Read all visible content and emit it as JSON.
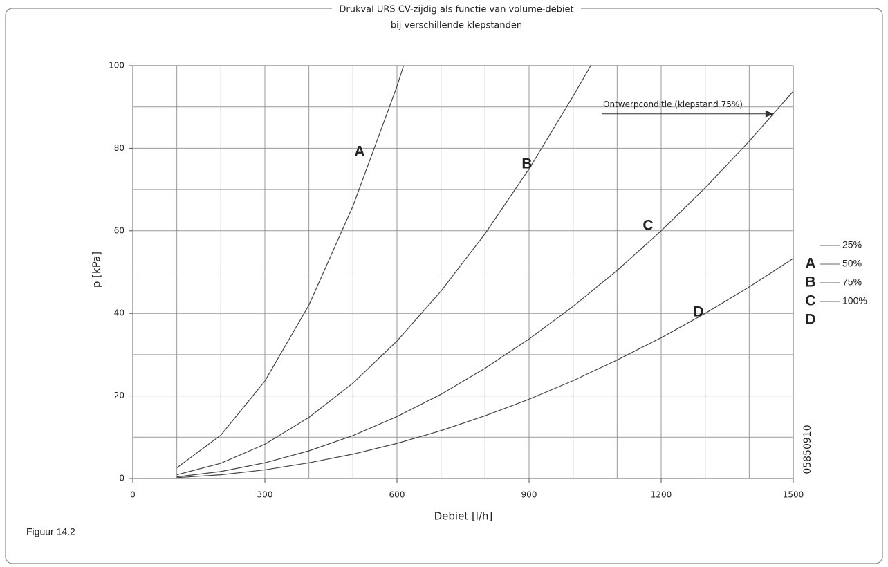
{
  "chart_data": {
    "type": "line",
    "title": [
      "Drukval URS CV-zijdig als functie van volume-debiet",
      "bij verschillende klepstanden"
    ],
    "x_label": "Debiet   [l/h]",
    "y_label": "p   [kPa]",
    "xlim": [
      0,
      1500
    ],
    "ylim": [
      0,
      100
    ],
    "xticks": [
      0,
      300,
      600,
      900,
      1200,
      1500
    ],
    "yticks": [
      0,
      20,
      40,
      60,
      80,
      100
    ],
    "xgrid": [
      100,
      200,
      300,
      400,
      500,
      600,
      700,
      800,
      900,
      1000,
      1100,
      1200,
      1300,
      1400
    ],
    "ygrid": [
      10,
      20,
      30,
      40,
      50,
      60,
      70,
      80,
      90
    ],
    "grid": true,
    "series": [
      {
        "name": "A",
        "color": "#444",
        "x": [
          100,
          200,
          300,
          400,
          500,
          600,
          615
        ],
        "values": [
          2.6,
          10.5,
          23.6,
          42,
          66,
          95,
          100
        ]
      },
      {
        "name": "B",
        "color": "#444",
        "x": [
          100,
          200,
          300,
          400,
          500,
          600,
          700,
          800,
          900,
          1000,
          1040
        ],
        "values": [
          0.9,
          3.7,
          8.3,
          14.8,
          23.1,
          33.3,
          45.4,
          59.3,
          75,
          92.6,
          100
        ]
      },
      {
        "name": "C",
        "color": "#444",
        "x": [
          100,
          200,
          300,
          400,
          500,
          600,
          700,
          800,
          900,
          1000,
          1100,
          1200,
          1300,
          1400,
          1500
        ],
        "values": [
          0.4,
          1.7,
          3.8,
          6.7,
          10.4,
          15,
          20.4,
          26.7,
          33.8,
          41.7,
          50.4,
          60,
          70.4,
          81.7,
          93.8
        ]
      },
      {
        "name": "D",
        "color": "#444",
        "x": [
          100,
          200,
          300,
          400,
          500,
          600,
          700,
          800,
          900,
          1000,
          1100,
          1200,
          1300,
          1400,
          1500
        ],
        "values": [
          0.2,
          0.9,
          2.1,
          3.8,
          5.9,
          8.5,
          11.6,
          15.2,
          19.2,
          23.7,
          28.7,
          34.1,
          40,
          46.4,
          53.3
        ]
      }
    ],
    "legend_labels": [
      "25%",
      "50%",
      "75%",
      "100%"
    ],
    "annotation": {
      "text": "Ontwerpconditie (klepstand 75%)",
      "x": [
        1065,
        1440
      ],
      "y": 90
    },
    "code": "05850910",
    "caption": "Figuur 14.2"
  }
}
